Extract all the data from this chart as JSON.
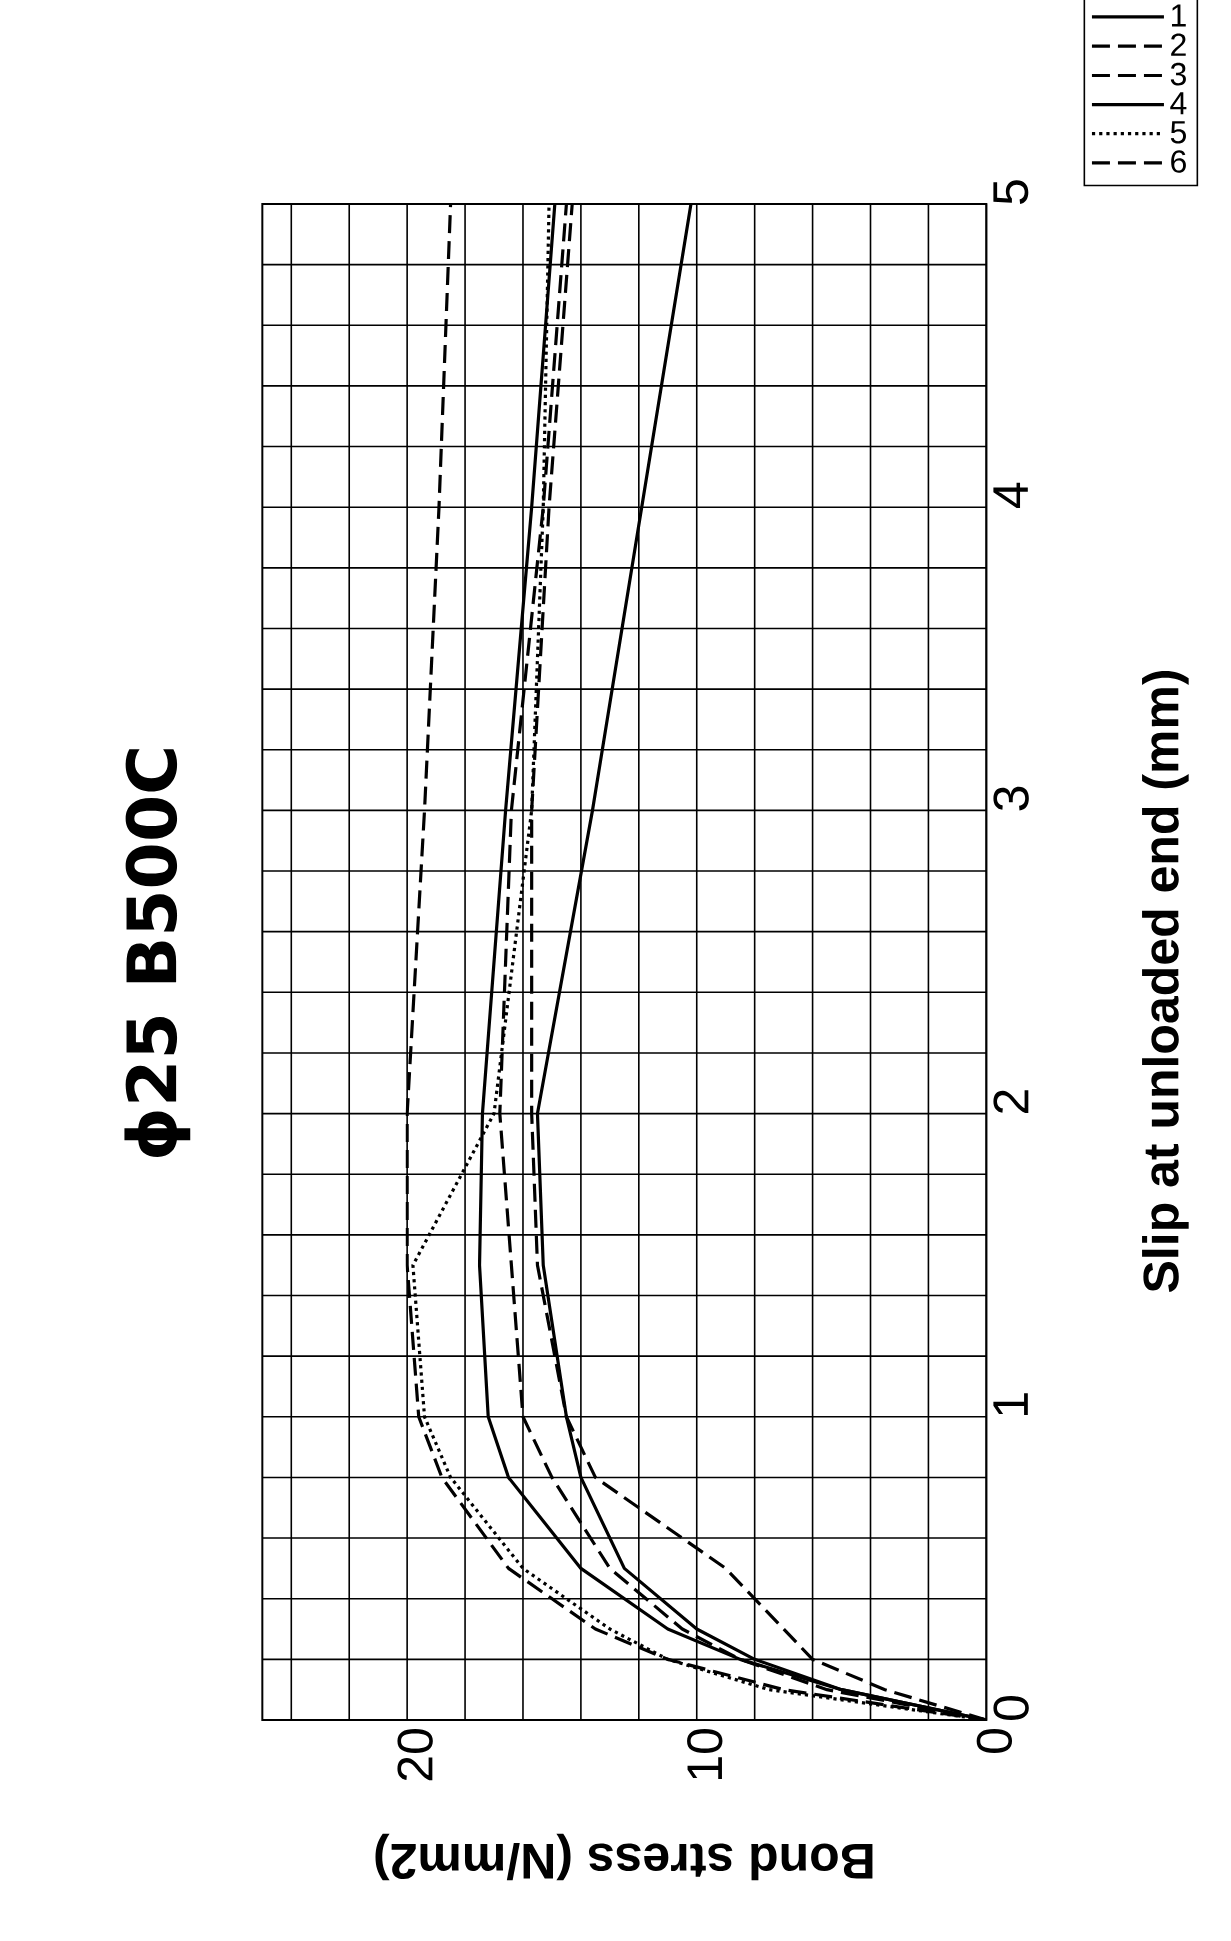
{
  "chart_data": {
    "type": "line",
    "title": "ϕ25 B500C",
    "xlabel": "Bond stress (N/mm2)",
    "ylabel": "Slip at unloaded end (mm)",
    "series": [
      {
        "name": "1",
        "color": "#000000",
        "line_style": "solid",
        "x": [
          0,
          5,
          8,
          10,
          12.5,
          14,
          14.5,
          15.3,
          15.5,
          13.6,
          11.9,
          10.2
        ],
        "values": [
          0,
          0.1,
          0.2,
          0.3,
          0.5,
          0.8,
          1.0,
          1.5,
          2.0,
          3.0,
          4.0,
          5.0
        ]
      },
      {
        "name": "2",
        "color": "#000000",
        "line_style": "dashed",
        "x": [
          0,
          5.5,
          8.5,
          10.5,
          13,
          15,
          16,
          16.4,
          16.8,
          16.4,
          15.3,
          14.5
        ],
        "values": [
          0,
          0.1,
          0.2,
          0.3,
          0.5,
          0.8,
          1.0,
          1.5,
          2.0,
          3.0,
          4.0,
          5.0
        ]
      },
      {
        "name": "3",
        "color": "#000000",
        "line_style": "dashed",
        "x": [
          0,
          7,
          11,
          13.5,
          16.5,
          18.8,
          19.6,
          20,
          20,
          19.4,
          18.9,
          18.5
        ],
        "values": [
          0,
          0.1,
          0.2,
          0.3,
          0.5,
          0.8,
          1.0,
          1.5,
          2.0,
          3.0,
          4.0,
          5.0
        ]
      },
      {
        "name": "4",
        "color": "#000000",
        "line_style": "solid",
        "x": [
          0,
          5,
          8.5,
          11,
          14,
          16.5,
          17.2,
          17.5,
          17.4,
          16.6,
          15.7,
          14.9
        ],
        "values": [
          0,
          0.1,
          0.2,
          0.3,
          0.5,
          0.8,
          1.0,
          1.5,
          2.0,
          3.0,
          4.0,
          5.0
        ]
      },
      {
        "name": "5",
        "color": "#000000",
        "line_style": "dotted",
        "x": [
          0,
          7.5,
          11,
          13,
          16,
          18.5,
          19.4,
          19.8,
          17,
          15.7,
          15.3,
          15.1
        ],
        "values": [
          0,
          0.1,
          0.2,
          0.3,
          0.5,
          0.8,
          1.0,
          1.5,
          2.0,
          3.0,
          4.0,
          5.0
        ]
      },
      {
        "name": "6",
        "color": "#000000",
        "line_style": "dashed",
        "x": [
          0,
          3.5,
          6,
          7,
          9,
          13.5,
          14.5,
          15.5,
          15.7,
          15.7,
          15.1,
          14.3
        ],
        "values": [
          0,
          0.1,
          0.2,
          0.3,
          0.5,
          0.8,
          1.0,
          1.5,
          2.0,
          3.0,
          4.0,
          5.0
        ]
      }
    ],
    "xlim": [
      25,
      0
    ],
    "xticks": [
      0,
      {
        "value": 2,
        "label": null
      },
      {
        "value": 4,
        "label": null
      },
      {
        "value": 6,
        "label": null
      },
      {
        "value": 8,
        "label": null
      },
      10,
      {
        "value": 12,
        "label": null
      },
      {
        "value": 14,
        "label": null
      },
      {
        "value": 16,
        "label": null
      },
      {
        "value": 18,
        "label": null
      },
      20,
      {
        "value": 22,
        "label": null
      },
      {
        "value": 24,
        "label": null
      }
    ],
    "ylim": [
      0,
      5
    ],
    "yticks": [
      0,
      {
        "value": 0.2,
        "label": null
      },
      {
        "value": 0.4,
        "label": null
      },
      {
        "value": 0.6,
        "label": null
      },
      {
        "value": 0.8,
        "label": null
      },
      1,
      {
        "value": 1.2,
        "label": null
      },
      {
        "value": 1.4,
        "label": null
      },
      {
        "value": 1.6,
        "label": null
      },
      {
        "value": 1.8,
        "label": null
      },
      2,
      {
        "value": 2.2,
        "label": null
      },
      {
        "value": 2.4,
        "label": null
      },
      {
        "value": 2.6,
        "label": null
      },
      {
        "value": 2.8,
        "label": null
      },
      3,
      {
        "value": 3.2,
        "label": null
      },
      {
        "value": 3.4,
        "label": null
      },
      {
        "value": 3.6,
        "label": null
      },
      {
        "value": 3.8,
        "label": null
      },
      4,
      {
        "value": 4.2,
        "label": null
      },
      {
        "value": 4.4,
        "label": null
      },
      {
        "value": 4.6,
        "label": null
      },
      {
        "value": 4.8,
        "label": null
      },
      5
    ],
    "grid": true,
    "legend": "top right"
  }
}
